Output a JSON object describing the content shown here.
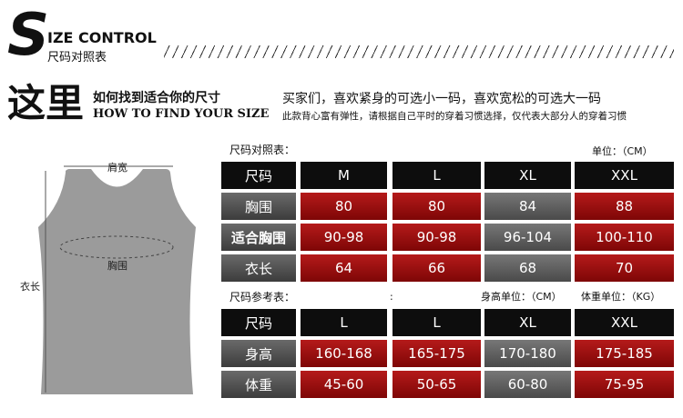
{
  "header": {
    "letter": "S",
    "title": "IZE CONTROL",
    "subtitle": "尺码对照表"
  },
  "intro": {
    "big": "这里",
    "cn": "如何找到适合你的尺寸",
    "en": "HOW TO FIND YOUR SIZE",
    "line1": "买家们，喜欢紧身的可选小一码，喜欢宽松的可选大一码",
    "line2": "此款背心富有弹性，请根据自己平时的穿着习惯选择，仅代表大部分人的穿着习惯"
  },
  "diagram": {
    "shoulder": "肩宽",
    "chest": "胸围",
    "length": "衣长"
  },
  "table1": {
    "caption": "尺码对照表：",
    "unit": "单位：（CM）",
    "header": [
      "尺码",
      "M",
      "L",
      "XL",
      "XXL"
    ],
    "rows": [
      [
        "胸围",
        "80",
        "80",
        "84",
        "88"
      ],
      [
        "适合胸围",
        "90-98",
        "90-98",
        "96-104",
        "100-110"
      ],
      [
        "衣长",
        "64",
        "66",
        "68",
        "70"
      ]
    ]
  },
  "table2": {
    "caption": "尺码参考表：",
    "mark": ":",
    "unit1": "身高单位：（CM）",
    "unit2": "体重单位：（KG）",
    "header": [
      "尺码",
      "L",
      "L",
      "XL",
      "XXL"
    ],
    "rows": [
      [
        "身高",
        "160-168",
        "165-175",
        "170-180",
        "175-185"
      ],
      [
        "体重",
        "45-60",
        "50-65",
        "60-80",
        "75-95"
      ]
    ]
  }
}
